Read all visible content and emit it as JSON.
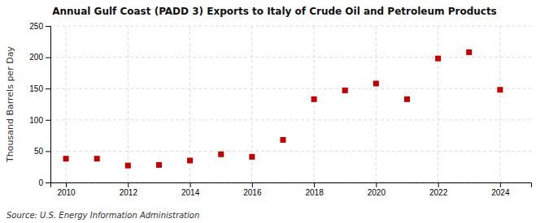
{
  "chart_data": {
    "type": "scatter",
    "title": "Annual Gulf Coast (PADD 3) Exports to Italy of Crude Oil and Petroleum Products",
    "ylabel": "Thousand Barrels per Day",
    "annotations": [
      "Source: U.S. Energy Information Administration"
    ],
    "x": [
      2010,
      2011,
      2012,
      2013,
      2014,
      2015,
      2016,
      2017,
      2018,
      2019,
      2020,
      2021,
      2022,
      2023,
      2024
    ],
    "values": [
      38,
      38,
      27,
      28,
      35,
      45,
      41,
      68,
      133,
      147,
      158,
      133,
      198,
      208,
      148
    ],
    "color": "#c00000",
    "marker": "square",
    "xlim": [
      2009.5,
      2025.0
    ],
    "ylim": [
      0,
      250
    ],
    "xticks": [
      2010,
      2012,
      2014,
      2016,
      2018,
      2020,
      2022,
      2024
    ],
    "yticks": [
      0,
      50,
      100,
      150,
      200,
      250
    ],
    "grid": true
  }
}
